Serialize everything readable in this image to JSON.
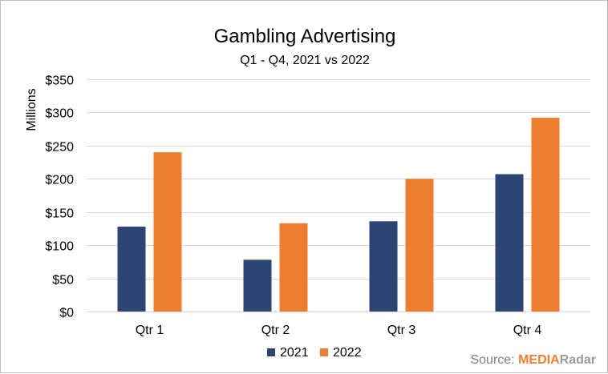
{
  "chart_data": {
    "type": "bar",
    "title": "Gambling Advertising",
    "subtitle": "Q1 - Q4, 2021 vs 2022",
    "ylabel": "Millions",
    "xlabel": "",
    "categories": [
      "Qtr 1",
      "Qtr 2",
      "Qtr 3",
      "Qtr 4"
    ],
    "series": [
      {
        "name": "2021",
        "color": "#2c4572",
        "values": [
          128,
          78,
          136,
          207
        ]
      },
      {
        "name": "2022",
        "color": "#ed7d31",
        "values": [
          240,
          133,
          200,
          292
        ]
      }
    ],
    "ylim": [
      0,
      350
    ],
    "yticks": [
      0,
      50,
      100,
      150,
      200,
      250,
      300,
      350
    ],
    "ytick_labels": [
      "$0",
      "$50",
      "$100",
      "$150",
      "$200",
      "$250",
      "$300",
      "$350"
    ],
    "grid": true,
    "legend_position": "bottom"
  },
  "source": {
    "prefix": "Source: ",
    "brand_part1": "MEDIA",
    "brand_part2": "Radar",
    "brand_color1": "#ed7d31",
    "brand_color2": "#9a9a9a"
  }
}
